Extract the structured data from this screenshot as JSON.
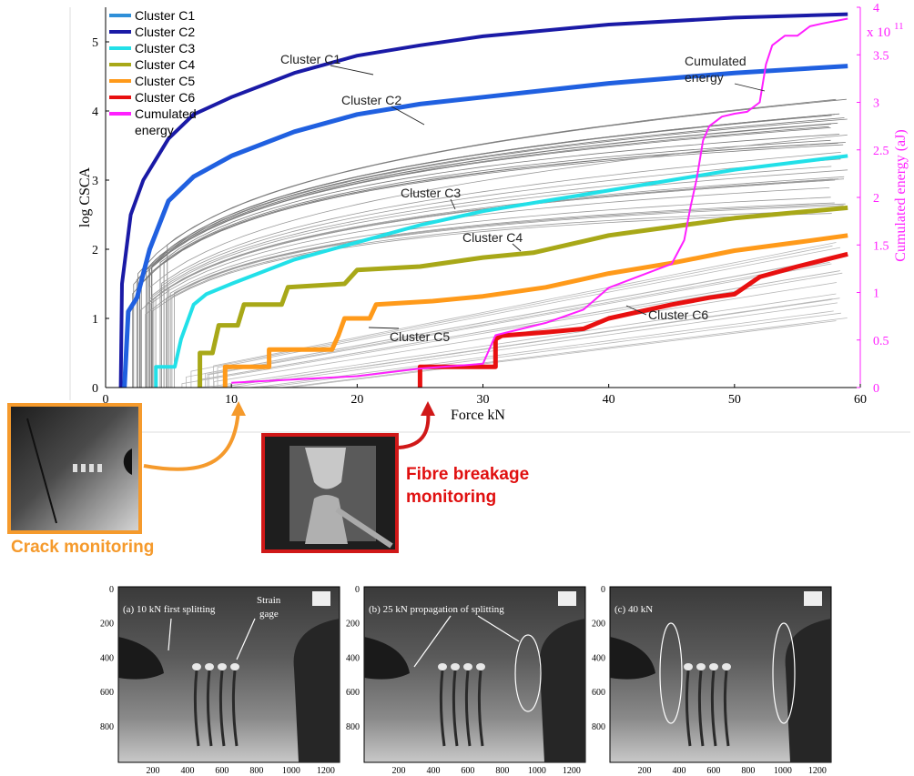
{
  "chart_data": {
    "type": "line",
    "xlabel": "Force kN",
    "ylabel": "log CSCA",
    "y2label": "Cumulated energy (aJ)",
    "y2_exponent": "x 10",
    "y2_exponent_power": "11",
    "xlim": [
      0,
      60
    ],
    "ylim": [
      0,
      5.5
    ],
    "y2lim": [
      0,
      4
    ],
    "xticks": [
      "0",
      "10",
      "20",
      "30",
      "40",
      "50",
      "60"
    ],
    "yticks": [
      "0",
      "1",
      "2",
      "3",
      "4",
      "5"
    ],
    "y2ticks": [
      "0",
      "0.5",
      "1",
      "1.5",
      "2",
      "2.5",
      "3",
      "3.5",
      "4"
    ],
    "legend_position": "top-left",
    "legend": [
      {
        "label": "Cluster C1",
        "color": "#2f8fd8"
      },
      {
        "label": "Cluster C2",
        "color": "#1a1aa6"
      },
      {
        "label": "Cluster C3",
        "color": "#22e0e8"
      },
      {
        "label": "Cluster C4",
        "color": "#a8a818"
      },
      {
        "label": "Cluster C5",
        "color": "#ff9a1a"
      },
      {
        "label": "Cluster C6",
        "color": "#e81010"
      },
      {
        "label": "Cumulated energy",
        "color": "#ff20ff"
      }
    ],
    "series": [
      {
        "color": "#1a1aa6",
        "axis": "left",
        "width": 4,
        "points": [
          [
            1.2,
            0
          ],
          [
            1.3,
            1.5
          ],
          [
            2,
            2.5
          ],
          [
            3,
            3.0
          ],
          [
            5,
            3.6
          ],
          [
            7,
            3.95
          ],
          [
            10,
            4.2
          ],
          [
            15,
            4.55
          ],
          [
            20,
            4.8
          ],
          [
            25,
            4.95
          ],
          [
            30,
            5.08
          ],
          [
            40,
            5.25
          ],
          [
            50,
            5.35
          ],
          [
            59,
            5.4
          ]
        ]
      },
      {
        "color": "#2060e0",
        "axis": "left",
        "width": 5,
        "points": [
          [
            1.5,
            0
          ],
          [
            1.8,
            1.1
          ],
          [
            2.5,
            1.3
          ],
          [
            3.5,
            2.0
          ],
          [
            5,
            2.7
          ],
          [
            7,
            3.05
          ],
          [
            10,
            3.35
          ],
          [
            15,
            3.7
          ],
          [
            20,
            3.95
          ],
          [
            25,
            4.1
          ],
          [
            30,
            4.2
          ],
          [
            40,
            4.4
          ],
          [
            50,
            4.55
          ],
          [
            59,
            4.65
          ]
        ]
      },
      {
        "color": "#22e0e8",
        "axis": "left",
        "width": 4,
        "points": [
          [
            4,
            0
          ],
          [
            4,
            0.3
          ],
          [
            5.5,
            0.3
          ],
          [
            6,
            0.7
          ],
          [
            7,
            1.2
          ],
          [
            8,
            1.35
          ],
          [
            10,
            1.5
          ],
          [
            15,
            1.85
          ],
          [
            20,
            2.1
          ],
          [
            25,
            2.35
          ],
          [
            30,
            2.55
          ],
          [
            40,
            2.85
          ],
          [
            50,
            3.15
          ],
          [
            59,
            3.35
          ]
        ]
      },
      {
        "color": "#a8a818",
        "axis": "left",
        "width": 5,
        "points": [
          [
            7.5,
            0
          ],
          [
            7.5,
            0.5
          ],
          [
            8.5,
            0.5
          ],
          [
            9,
            0.9
          ],
          [
            10.5,
            0.9
          ],
          [
            11,
            1.2
          ],
          [
            14,
            1.2
          ],
          [
            14.5,
            1.45
          ],
          [
            19,
            1.5
          ],
          [
            20,
            1.7
          ],
          [
            25,
            1.75
          ],
          [
            30,
            1.88
          ],
          [
            34,
            1.95
          ],
          [
            40,
            2.2
          ],
          [
            50,
            2.45
          ],
          [
            59,
            2.6
          ]
        ]
      },
      {
        "color": "#ff9a1a",
        "axis": "left",
        "width": 5,
        "points": [
          [
            9.5,
            0
          ],
          [
            9.5,
            0.3
          ],
          [
            13,
            0.3
          ],
          [
            13,
            0.55
          ],
          [
            18,
            0.55
          ],
          [
            18.5,
            0.75
          ],
          [
            19,
            1.0
          ],
          [
            21,
            1.0
          ],
          [
            21.5,
            1.2
          ],
          [
            26,
            1.25
          ],
          [
            30,
            1.32
          ],
          [
            35,
            1.45
          ],
          [
            40,
            1.65
          ],
          [
            45,
            1.8
          ],
          [
            50,
            1.98
          ],
          [
            55,
            2.1
          ],
          [
            59,
            2.2
          ]
        ]
      },
      {
        "color": "#e81010",
        "axis": "left",
        "width": 5,
        "points": [
          [
            25,
            0
          ],
          [
            25,
            0.3
          ],
          [
            31,
            0.3
          ],
          [
            31,
            0.7
          ],
          [
            31.5,
            0.75
          ],
          [
            35,
            0.8
          ],
          [
            38,
            0.85
          ],
          [
            40,
            1.0
          ],
          [
            45,
            1.2
          ],
          [
            48,
            1.3
          ],
          [
            50,
            1.35
          ],
          [
            52,
            1.6
          ],
          [
            55,
            1.75
          ],
          [
            59,
            1.93
          ]
        ]
      },
      {
        "color": "#ff20ff",
        "axis": "right",
        "width": 2,
        "points": [
          [
            10,
            0.05
          ],
          [
            20,
            0.12
          ],
          [
            25,
            0.2
          ],
          [
            30,
            0.25
          ],
          [
            31,
            0.55
          ],
          [
            35,
            0.68
          ],
          [
            38,
            0.82
          ],
          [
            40,
            1.05
          ],
          [
            43,
            1.2
          ],
          [
            45,
            1.3
          ],
          [
            46,
            1.55
          ],
          [
            46.5,
            1.9
          ],
          [
            47,
            2.2
          ],
          [
            47.5,
            2.6
          ],
          [
            48,
            2.75
          ],
          [
            48.5,
            2.8
          ],
          [
            49,
            2.85
          ],
          [
            50,
            2.88
          ],
          [
            51,
            2.9
          ],
          [
            52,
            3.0
          ],
          [
            52.5,
            3.4
          ],
          [
            53,
            3.6
          ],
          [
            54,
            3.7
          ],
          [
            55,
            3.7
          ],
          [
            56,
            3.8
          ],
          [
            57,
            3.83
          ],
          [
            59,
            3.88
          ]
        ]
      }
    ],
    "annotations": [
      {
        "text": "Cluster C1",
        "x": 19,
        "y": 5.1,
        "tx": 21,
        "ty": 4.85
      },
      {
        "text": "Cluster C2",
        "x": 23,
        "y": 4.3,
        "tx": 25,
        "ty": 4.1
      },
      {
        "text": "Cluster C3",
        "x": 29,
        "y": 2.83,
        "tx": 29,
        "ty": 2.7
      },
      {
        "text": "Cluster C4",
        "x": 32,
        "y": 2.2,
        "tx": 34,
        "ty": 1.95
      },
      {
        "text": "Cluster C5",
        "x": 24,
        "y": 0.72,
        "tx": 22,
        "ty": 1.0
      },
      {
        "text": "Cluster C6",
        "x": 44,
        "y": 1.05,
        "tx": 42,
        "ty": 1.1
      },
      {
        "text": "Cumulated",
        "x": 46,
        "y": 4.65,
        "tx": 52,
        "ty": 4.45
      },
      {
        "text": "energy",
        "x": 47.5,
        "y": 4.4,
        "tx": 52,
        "ty": 4.45
      }
    ]
  },
  "captions": {
    "crack": "Crack monitoring",
    "fibre_line1": "Fibre breakage",
    "fibre_line2": "monitoring"
  },
  "panels": [
    {
      "label": "(a) 10 kN first splitting",
      "extra1": "Strain",
      "extra2": "gage"
    },
    {
      "label": "(b) 25 kN propagation of splitting",
      "extra1": "",
      "extra2": ""
    },
    {
      "label": "(c) 40 kN",
      "extra1": "",
      "extra2": ""
    }
  ],
  "panel_axes": {
    "yticks": [
      "0",
      "200",
      "400",
      "600",
      "800"
    ],
    "xticks": [
      "200",
      "400",
      "600",
      "800",
      "1000",
      "1200"
    ]
  }
}
